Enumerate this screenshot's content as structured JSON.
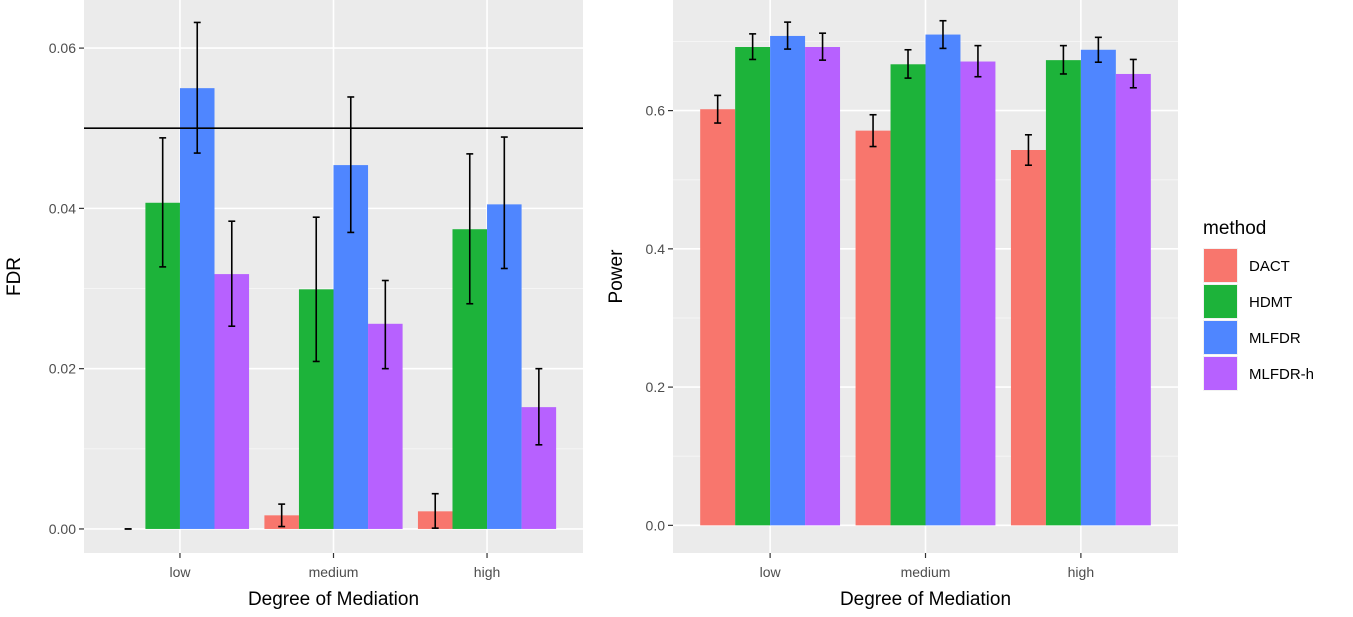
{
  "legend": {
    "title": "method",
    "items": [
      {
        "label": "DACT",
        "color": "#F8766D"
      },
      {
        "label": "HDMT",
        "color": "#1DB33A"
      },
      {
        "label": "MLFDR",
        "color": "#4F86FF"
      },
      {
        "label": "MLFDR-h",
        "color": "#B761FF"
      }
    ]
  },
  "chart_data": [
    {
      "type": "bar",
      "xlabel": "Degree of Mediation",
      "ylabel": "FDR",
      "categories": [
        "low",
        "medium",
        "high"
      ],
      "ylim": [
        -0.003,
        0.066
      ],
      "yticks": [
        0.0,
        0.02,
        0.04,
        0.06
      ],
      "ytick_labels": [
        "0.00",
        "0.02",
        "0.04",
        "0.06"
      ],
      "grid": true,
      "reference_line": 0.05,
      "series": [
        {
          "name": "DACT",
          "values": [
            0.0,
            0.0017,
            0.0022
          ],
          "err_low": [
            0.0,
            0.0003,
            0.0001
          ],
          "err_high": [
            0.0,
            0.0031,
            0.0044
          ]
        },
        {
          "name": "HDMT",
          "values": [
            0.0407,
            0.0299,
            0.0374
          ],
          "err_low": [
            0.0327,
            0.0209,
            0.0281
          ],
          "err_high": [
            0.0488,
            0.0389,
            0.0468
          ]
        },
        {
          "name": "MLFDR",
          "values": [
            0.055,
            0.0454,
            0.0405
          ],
          "err_low": [
            0.0469,
            0.037,
            0.0325
          ],
          "err_high": [
            0.0632,
            0.0539,
            0.0489
          ]
        },
        {
          "name": "MLFDR-h",
          "values": [
            0.0318,
            0.0256,
            0.0152
          ],
          "err_low": [
            0.0253,
            0.02,
            0.0105
          ],
          "err_high": [
            0.0384,
            0.031,
            0.02
          ]
        }
      ]
    },
    {
      "type": "bar",
      "xlabel": "Degree of Mediation",
      "ylabel": "Power",
      "categories": [
        "low",
        "medium",
        "high"
      ],
      "ylim": [
        -0.04,
        0.76
      ],
      "yticks": [
        0.0,
        0.2,
        0.4,
        0.6
      ],
      "ytick_labels": [
        "0.0",
        "0.2",
        "0.4",
        "0.6"
      ],
      "grid": true,
      "series": [
        {
          "name": "DACT",
          "values": [
            0.602,
            0.571,
            0.543
          ],
          "err_low": [
            0.582,
            0.548,
            0.521
          ],
          "err_high": [
            0.622,
            0.594,
            0.565
          ]
        },
        {
          "name": "HDMT",
          "values": [
            0.692,
            0.667,
            0.673
          ],
          "err_low": [
            0.674,
            0.647,
            0.653
          ],
          "err_high": [
            0.711,
            0.688,
            0.694
          ]
        },
        {
          "name": "MLFDR",
          "values": [
            0.708,
            0.71,
            0.688
          ],
          "err_low": [
            0.689,
            0.69,
            0.67
          ],
          "err_high": [
            0.728,
            0.73,
            0.706
          ]
        },
        {
          "name": "MLFDR-h",
          "values": [
            0.692,
            0.671,
            0.653
          ],
          "err_low": [
            0.673,
            0.649,
            0.633
          ],
          "err_high": [
            0.712,
            0.694,
            0.674
          ]
        }
      ]
    }
  ]
}
